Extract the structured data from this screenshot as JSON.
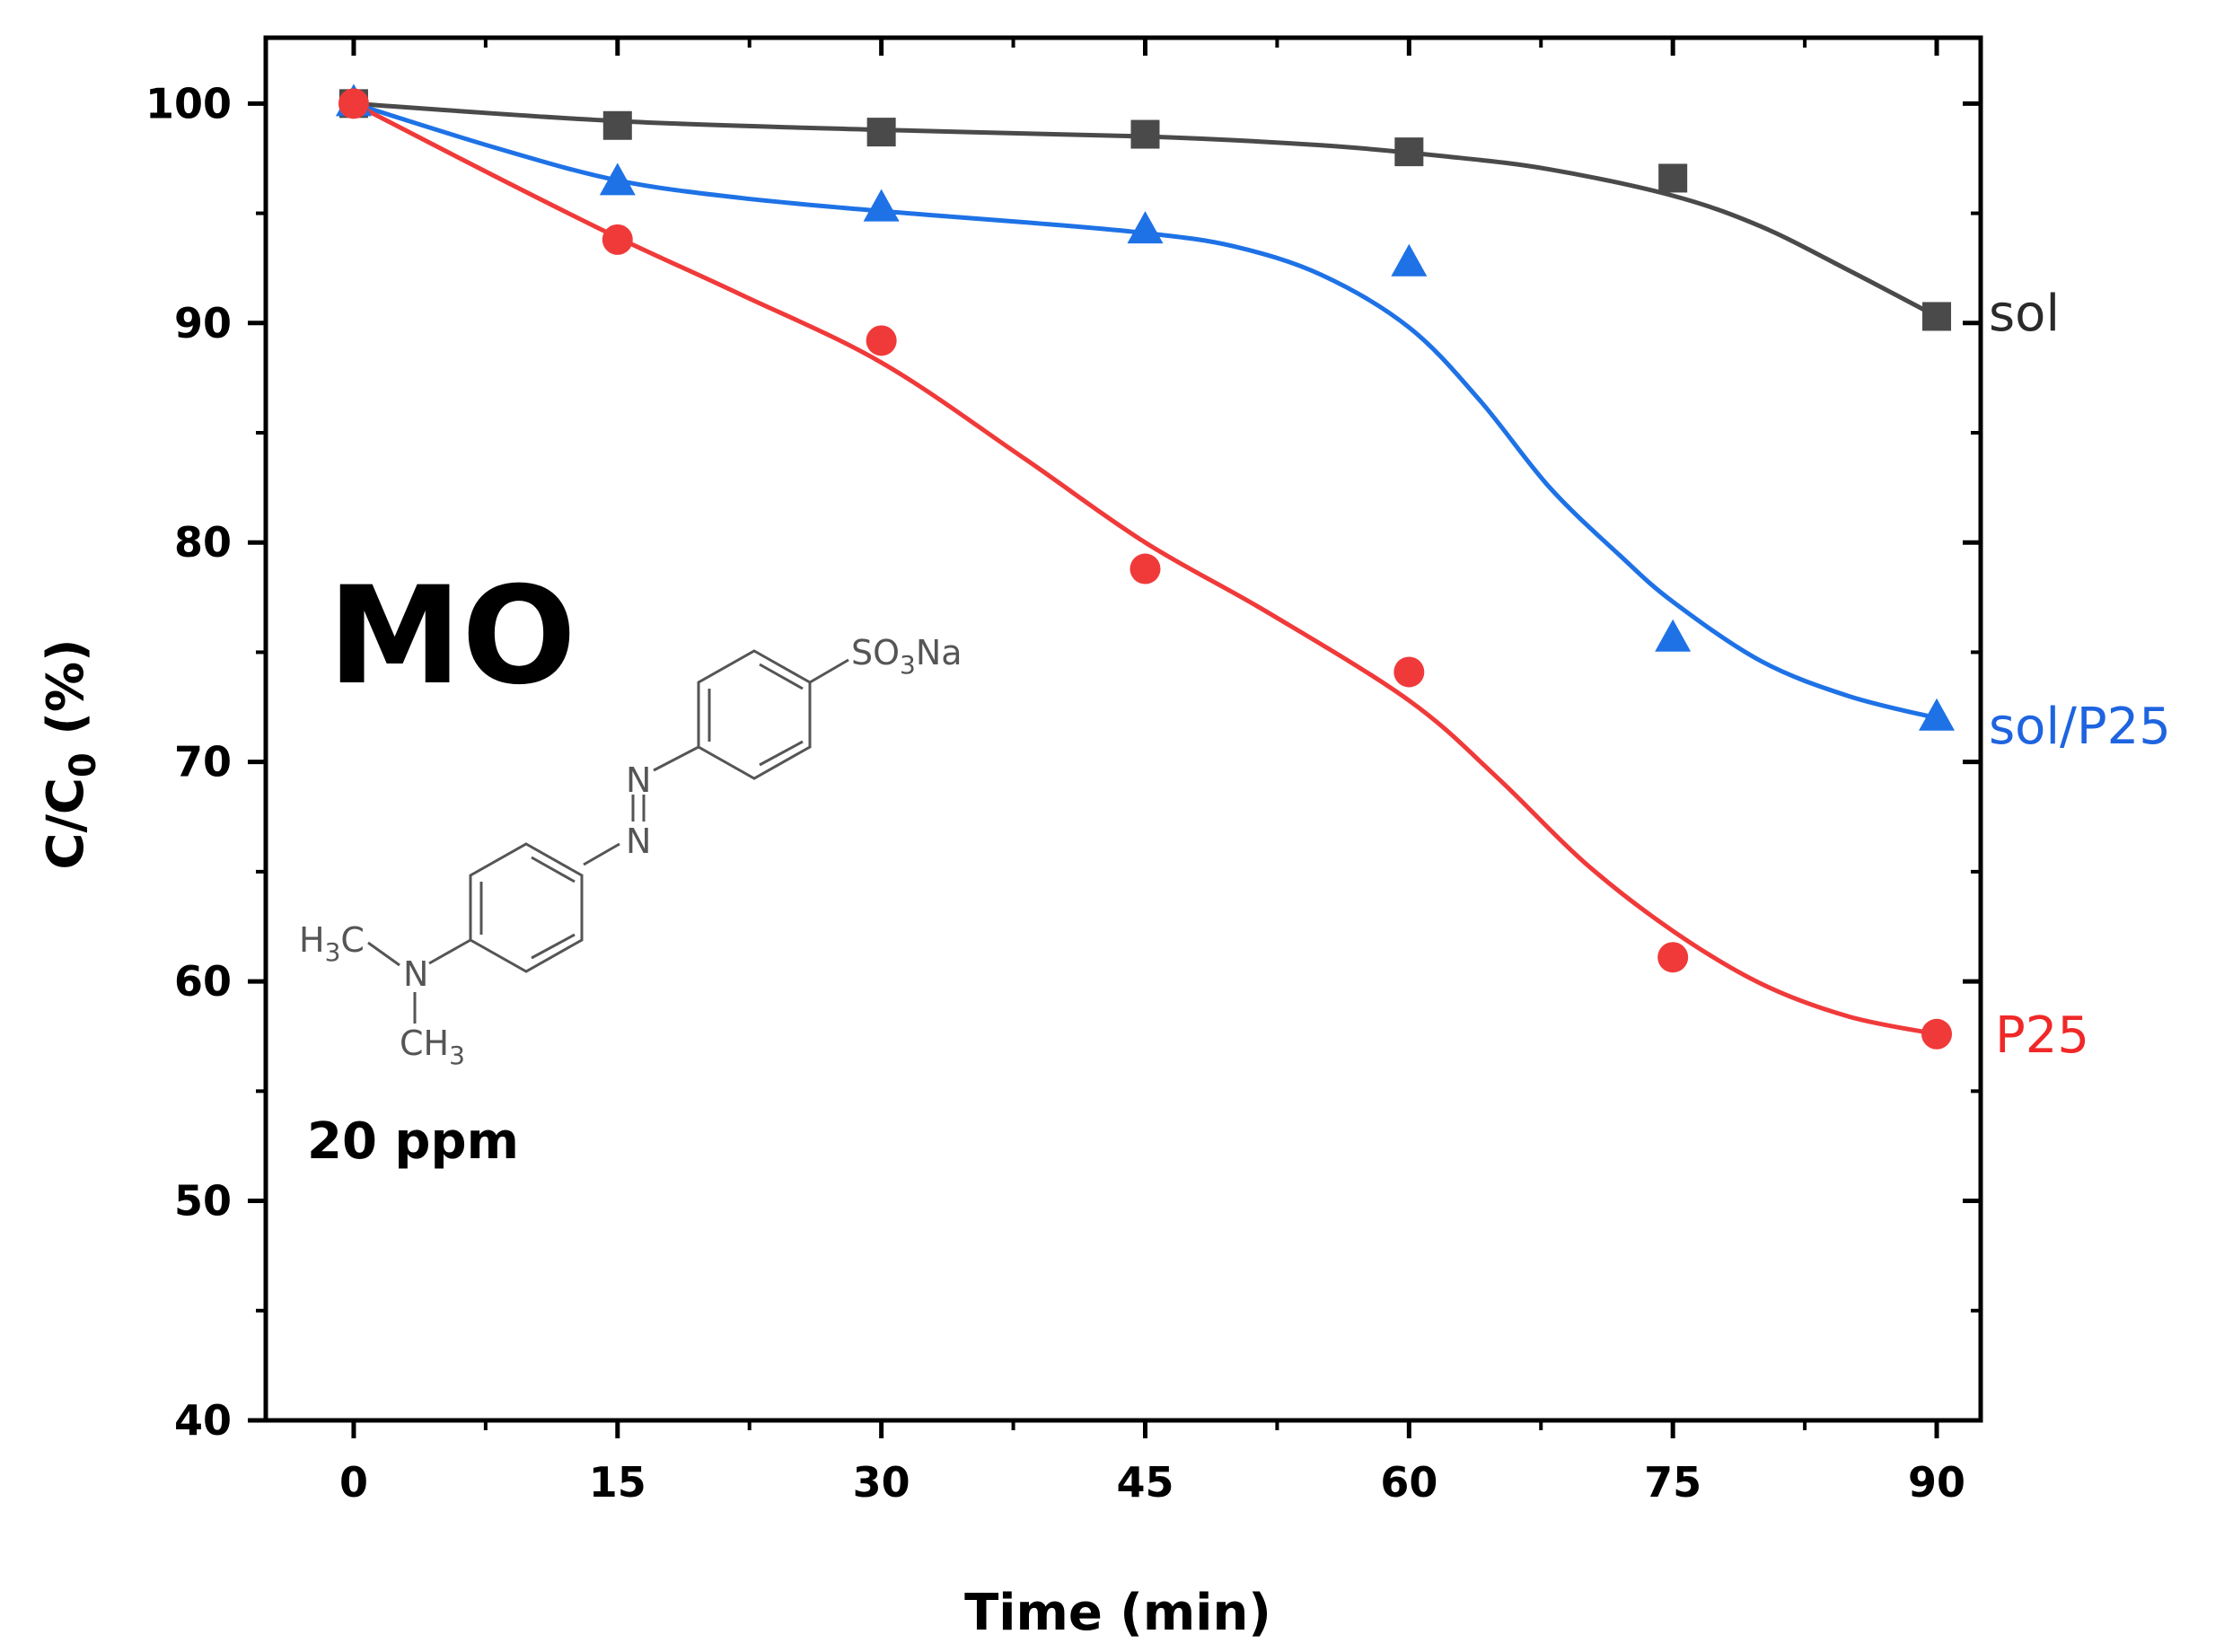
{
  "chart_data": {
    "type": "line",
    "title": "",
    "xlabel": "Time (min)",
    "ylabel": "C/C₀ (%)",
    "ylabel_main": "C/C",
    "ylabel_sub": "0",
    "ylabel_tail": " (%)",
    "xlim": [
      -5,
      92.5
    ],
    "ylim": [
      40,
      103
    ],
    "x_ticks": [
      0,
      15,
      30,
      45,
      60,
      75,
      90
    ],
    "y_ticks": [
      40,
      50,
      60,
      70,
      80,
      90,
      100
    ],
    "x": [
      0,
      15,
      30,
      45,
      60,
      75,
      90
    ],
    "series": [
      {
        "name": "sol",
        "color": "#4a4a4a",
        "marker": "square",
        "values": [
          100,
          99.0,
          98.7,
          98.6,
          97.8,
          96.6,
          90.3
        ],
        "fit": [
          [
            0,
            100
          ],
          [
            15,
            99.2
          ],
          [
            30,
            98.8
          ],
          [
            45,
            98.5
          ],
          [
            55,
            98.1
          ],
          [
            62,
            97.6
          ],
          [
            68,
            97.0
          ],
          [
            75,
            95.8
          ],
          [
            80,
            94.4
          ],
          [
            85,
            92.4
          ],
          [
            90,
            90.3
          ]
        ]
      },
      {
        "name": "sol/P25",
        "color": "#1e72e6",
        "marker": "triangle",
        "values": [
          100,
          96.4,
          95.2,
          94.2,
          92.7,
          75.6,
          72.0
        ],
        "fit": [
          [
            0,
            100
          ],
          [
            8,
            98.0
          ],
          [
            15,
            96.5
          ],
          [
            22,
            95.7
          ],
          [
            30,
            95.1
          ],
          [
            38,
            94.6
          ],
          [
            45,
            94.1
          ],
          [
            50,
            93.5
          ],
          [
            55,
            92.2
          ],
          [
            60,
            89.8
          ],
          [
            64,
            86.5
          ],
          [
            68,
            82.5
          ],
          [
            72,
            79.4
          ],
          [
            75,
            77.3
          ],
          [
            80,
            74.6
          ],
          [
            85,
            73.0
          ],
          [
            90,
            72.0
          ]
        ]
      },
      {
        "name": "P25",
        "color": "#f03a3a",
        "marker": "circle",
        "values": [
          100,
          93.8,
          89.2,
          78.8,
          74.1,
          61.1,
          57.6
        ],
        "fit": [
          [
            0,
            100
          ],
          [
            8,
            96.7
          ],
          [
            15,
            93.9
          ],
          [
            22,
            91.3
          ],
          [
            30,
            88.2
          ],
          [
            38,
            83.9
          ],
          [
            45,
            80.0
          ],
          [
            52,
            76.8
          ],
          [
            60,
            72.8
          ],
          [
            65,
            69.3
          ],
          [
            70,
            65.4
          ],
          [
            75,
            62.3
          ],
          [
            80,
            59.9
          ],
          [
            85,
            58.4
          ],
          [
            90,
            57.6
          ]
        ]
      }
    ],
    "annotations": {
      "analyte": "MO",
      "concentration": "20 ppm",
      "structure": {
        "group_top": "SO",
        "group_top_sub": "3",
        "group_top_tail": "Na",
        "methyl_left": "H",
        "methyl_left_sub": "3",
        "methyl_left_tail": "C",
        "amine": "N",
        "methyl_bottom": "CH",
        "methyl_bottom_sub": "3",
        "azo_n1": "N",
        "azo_n2": "N"
      }
    }
  }
}
